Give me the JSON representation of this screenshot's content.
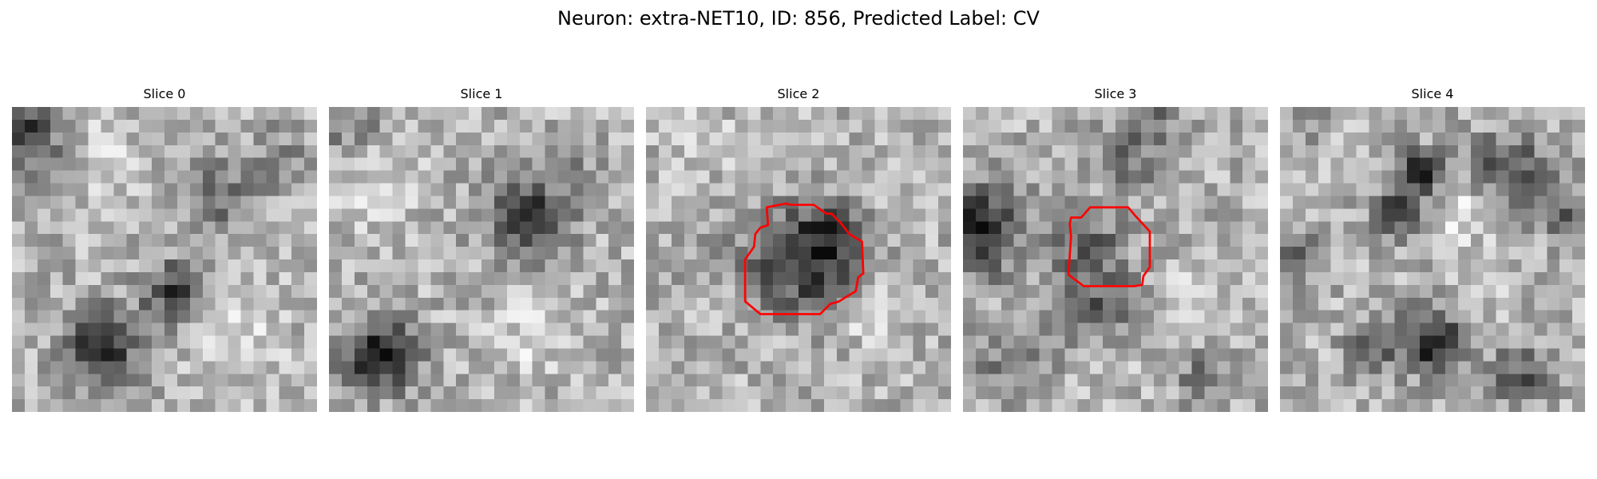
{
  "figure": {
    "title": "Neuron: extra-NET10, ID: 856, Predicted Label: CV",
    "contour_color": "#ff0000",
    "colormap": "gray",
    "grid_size": 24,
    "panels": [
      {
        "title": "Slice 0",
        "has_contour": false
      },
      {
        "title": "Slice 1",
        "has_contour": false
      },
      {
        "title": "Slice 2",
        "has_contour": true
      },
      {
        "title": "Slice 3",
        "has_contour": true
      },
      {
        "title": "Slice 4",
        "has_contour": false
      }
    ]
  }
}
